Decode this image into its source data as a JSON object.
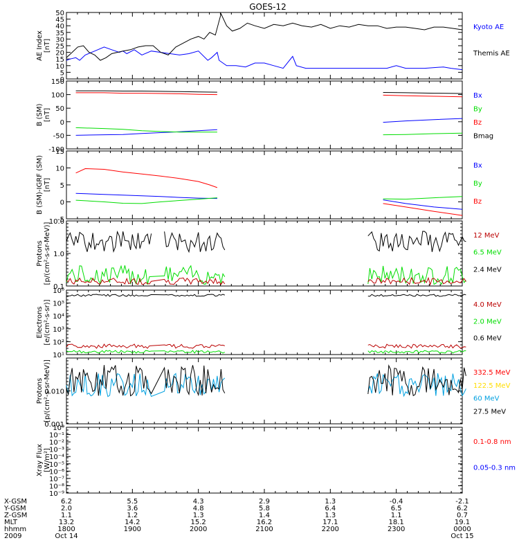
{
  "title": "GOES-12",
  "chart_data": [
    {
      "type": "line",
      "panel": "ae",
      "ylabel": [
        "AE Index",
        "[nT]"
      ],
      "ylim": [
        0,
        50
      ],
      "yticks": [
        "0",
        "5",
        "10",
        "15",
        "20",
        "25",
        "30",
        "35",
        "40",
        "45",
        "50"
      ],
      "series": [
        {
          "name": "Kyoto AE",
          "color": "#0000ff",
          "segments": [
            [
              [
                0,
                14
              ],
              [
                2,
                15
              ],
              [
                5,
                16
              ],
              [
                7,
                14
              ],
              [
                10,
                18
              ],
              [
                15,
                21
              ],
              [
                20,
                24
              ],
              [
                24,
                22
              ],
              [
                28,
                20
              ],
              [
                30,
                21
              ],
              [
                32,
                19
              ],
              [
                36,
                22
              ],
              [
                40,
                18
              ],
              [
                45,
                21
              ],
              [
                50,
                20
              ],
              [
                55,
                19
              ],
              [
                60,
                18
              ],
              [
                65,
                19
              ],
              [
                70,
                21
              ],
              [
                75,
                14
              ],
              [
                77,
                16
              ],
              [
                80,
                20
              ],
              [
                81,
                14
              ],
              [
                85,
                10
              ],
              [
                90,
                10
              ],
              [
                95,
                9
              ],
              [
                100,
                12
              ],
              [
                105,
                12
              ],
              [
                110,
                10
              ],
              [
                115,
                8
              ],
              [
                120,
                17
              ],
              [
                122,
                10
              ],
              [
                127,
                8
              ],
              [
                132,
                8
              ],
              [
                140,
                8
              ],
              [
                150,
                8
              ],
              [
                160,
                8
              ],
              [
                170,
                8
              ],
              [
                175,
                10
              ],
              [
                180,
                8
              ],
              [
                190,
                8
              ],
              [
                200,
                9
              ],
              [
                204,
                8
              ],
              [
                210,
                7
              ]
            ]
          ]
        },
        {
          "name": "Themis AE",
          "color": "#000000",
          "segments": [
            [
              [
                0,
                16
              ],
              [
                3,
                20
              ],
              [
                6,
                24
              ],
              [
                9,
                25
              ],
              [
                12,
                20
              ],
              [
                15,
                18
              ],
              [
                18,
                14
              ],
              [
                21,
                16
              ],
              [
                24,
                19
              ],
              [
                27,
                20
              ],
              [
                30,
                21
              ],
              [
                34,
                22
              ],
              [
                38,
                24
              ],
              [
                42,
                25
              ],
              [
                46,
                25
              ],
              [
                50,
                20
              ],
              [
                54,
                18
              ],
              [
                58,
                24
              ],
              [
                62,
                27
              ],
              [
                66,
                30
              ],
              [
                70,
                32
              ],
              [
                73,
                30
              ],
              [
                76,
                35
              ],
              [
                79,
                33
              ],
              [
                82,
                49
              ],
              [
                85,
                40
              ],
              [
                88,
                36
              ],
              [
                92,
                38
              ],
              [
                96,
                42
              ],
              [
                100,
                40
              ],
              [
                105,
                38
              ],
              [
                110,
                41
              ],
              [
                115,
                40
              ],
              [
                120,
                42
              ],
              [
                125,
                40
              ],
              [
                130,
                39
              ],
              [
                135,
                41
              ],
              [
                140,
                38
              ],
              [
                145,
                40
              ],
              [
                150,
                39
              ],
              [
                155,
                41
              ],
              [
                160,
                40
              ],
              [
                165,
                40
              ],
              [
                170,
                38
              ],
              [
                175,
                39
              ],
              [
                180,
                39
              ],
              [
                185,
                38
              ],
              [
                190,
                37
              ],
              [
                195,
                39
              ],
              [
                200,
                39
              ],
              [
                205,
                38
              ],
              [
                210,
                37
              ]
            ]
          ]
        }
      ]
    },
    {
      "type": "line",
      "panel": "bfield",
      "ylabel": [
        "B (SM)",
        "[nT]"
      ],
      "ylim": [
        -100,
        150
      ],
      "yticks": [
        "-100",
        "-50",
        "0",
        "50",
        "100",
        "150"
      ],
      "series": [
        {
          "name": "Bx",
          "color": "#0000ff",
          "segments": [
            [
              [
                5,
                -50
              ],
              [
                20,
                -48
              ],
              [
                30,
                -47
              ],
              [
                40,
                -43
              ],
              [
                50,
                -40
              ],
              [
                60,
                -37
              ],
              [
                70,
                -33
              ],
              [
                80,
                -29
              ]
            ],
            [
              [
                168,
                -2
              ],
              [
                180,
                3
              ],
              [
                195,
                8
              ],
              [
                210,
                12
              ]
            ]
          ]
        },
        {
          "name": "By",
          "color": "#00dd00",
          "segments": [
            [
              [
                5,
                -22
              ],
              [
                20,
                -25
              ],
              [
                30,
                -28
              ],
              [
                40,
                -33
              ],
              [
                50,
                -36
              ],
              [
                60,
                -38
              ],
              [
                70,
                -38
              ],
              [
                80,
                -38
              ]
            ],
            [
              [
                168,
                -48
              ],
              [
                180,
                -47
              ],
              [
                195,
                -44
              ],
              [
                210,
                -42
              ]
            ]
          ]
        },
        {
          "name": "Bz",
          "color": "#ff0000",
          "segments": [
            [
              [
                5,
                107
              ],
              [
                20,
                107
              ],
              [
                30,
                105
              ],
              [
                40,
                105
              ],
              [
                50,
                104
              ],
              [
                60,
                103
              ],
              [
                70,
                101
              ],
              [
                80,
                100
              ]
            ],
            [
              [
                168,
                98
              ],
              [
                180,
                96
              ],
              [
                195,
                94
              ],
              [
                210,
                92
              ]
            ]
          ]
        },
        {
          "name": "Bmag",
          "color": "#000000",
          "segments": [
            [
              [
                5,
                114
              ],
              [
                20,
                114
              ],
              [
                30,
                113
              ],
              [
                40,
                113
              ],
              [
                50,
                112
              ],
              [
                60,
                111
              ],
              [
                70,
                110
              ],
              [
                80,
                109
              ]
            ],
            [
              [
                168,
                108
              ],
              [
                180,
                107
              ],
              [
                195,
                105
              ],
              [
                210,
                104
              ]
            ]
          ]
        }
      ]
    },
    {
      "type": "line",
      "panel": "bdiff",
      "ylabel": [
        "B (SM)-IGRF (SM)",
        "[nT]"
      ],
      "ylim": [
        -5,
        15
      ],
      "yticks": [
        "-5",
        "0",
        "5",
        "10",
        "15"
      ],
      "series": [
        {
          "name": "Bx",
          "color": "#0000ff",
          "segments": [
            [
              [
                5,
                2.5
              ],
              [
                20,
                2.2
              ],
              [
                30,
                2.0
              ],
              [
                40,
                1.8
              ],
              [
                50,
                1.6
              ],
              [
                60,
                1.3
              ],
              [
                70,
                1.1
              ],
              [
                80,
                1.0
              ]
            ],
            [
              [
                168,
                0.6
              ],
              [
                180,
                -0.5
              ],
              [
                195,
                -1.5
              ],
              [
                210,
                -2.2
              ]
            ]
          ]
        },
        {
          "name": "By",
          "color": "#00dd00",
          "segments": [
            [
              [
                5,
                0.5
              ],
              [
                20,
                0.0
              ],
              [
                30,
                -0.4
              ],
              [
                40,
                -0.5
              ],
              [
                50,
                0.0
              ],
              [
                60,
                0.4
              ],
              [
                70,
                0.8
              ],
              [
                80,
                1.2
              ]
            ],
            [
              [
                168,
                0.9
              ],
              [
                180,
                0.8
              ],
              [
                195,
                1.2
              ],
              [
                210,
                1.6
              ]
            ]
          ]
        },
        {
          "name": "Bz",
          "color": "#ff0000",
          "segments": [
            [
              [
                5,
                8.5
              ],
              [
                10,
                9.8
              ],
              [
                20,
                9.6
              ],
              [
                30,
                8.8
              ],
              [
                40,
                8.2
              ],
              [
                50,
                7.6
              ],
              [
                60,
                6.9
              ],
              [
                70,
                6.0
              ],
              [
                76,
                5.0
              ],
              [
                80,
                4.2
              ]
            ],
            [
              [
                168,
                -0.5
              ],
              [
                180,
                -1.5
              ],
              [
                195,
                -2.8
              ],
              [
                210,
                -4.0
              ]
            ]
          ]
        }
      ]
    },
    {
      "type": "line",
      "panel": "protons1",
      "ylabel": [
        "Protons",
        "[p/(cm²-s-sr-MeV)]"
      ],
      "scale": "log",
      "ylim": [
        0.1,
        10
      ],
      "yticks": [
        "0.1",
        "1.0",
        "10.0"
      ],
      "series": [
        {
          "name": "12 MeV",
          "color": "#bb0000",
          "segments": []
        },
        {
          "name": "6.5 MeV",
          "color": "#00dd00",
          "segments": []
        },
        {
          "name": "2.4 MeV",
          "color": "#000000",
          "segments": []
        }
      ]
    },
    {
      "type": "line",
      "panel": "electrons",
      "ylabel": [
        "Electrons",
        "[e/(cm²-s-sr)]"
      ],
      "scale": "log",
      "ylim": [
        10,
        1000000
      ],
      "yticks": [
        "10¹",
        "10²",
        "10³",
        "10⁴",
        "10⁵",
        "10⁶"
      ],
      "series": [
        {
          "name": "4.0 MeV",
          "color": "#bb0000",
          "segments": []
        },
        {
          "name": "2.0 MeV",
          "color": "#00dd00",
          "segments": []
        },
        {
          "name": "0.6 MeV",
          "color": "#000000",
          "segments": []
        }
      ]
    },
    {
      "type": "line",
      "panel": "protons2",
      "ylabel": [
        "Protons",
        "[p/(cm²-s-sr-MeV)]"
      ],
      "scale": "log",
      "ylim": [
        0.001,
        0.1
      ],
      "yticks": [
        "0.001",
        "0.010"
      ],
      "series": [
        {
          "name": "332.5 MeV",
          "color": "#ff0000",
          "segments": []
        },
        {
          "name": "122.5 MeV",
          "color": "#ffdd00",
          "segments": []
        },
        {
          "name": "60 MeV",
          "color": "#00a0e0",
          "segments": []
        },
        {
          "name": "27.5 MeV",
          "color": "#000000",
          "segments": []
        }
      ]
    },
    {
      "type": "line",
      "panel": "xray",
      "ylabel": [
        "Xray Flux",
        "[W/m²]"
      ],
      "scale": "log",
      "ylim": [
        1e-09,
        1
      ],
      "yticks": [
        "10⁻⁹",
        "10⁻⁸",
        "10⁻⁷",
        "10⁻⁶",
        "10⁻⁵",
        "10⁻⁴",
        "10⁻³",
        "10⁻²",
        "10⁻¹",
        "10⁰"
      ],
      "series": [
        {
          "name": "0.1-0.8 nm",
          "color": "#ff0000",
          "segments": []
        },
        {
          "name": "0.05-0.3 nm",
          "color": "#0000ff",
          "segments": []
        }
      ]
    }
  ],
  "xaxis": {
    "range_minutes": [
      0,
      360
    ],
    "tick_minutes": [
      0,
      60,
      120,
      180,
      240,
      300,
      360
    ],
    "row_labels": [
      "X-GSM",
      "Y-GSM",
      "Z-GSM",
      "MLT",
      "hhmm",
      "2009"
    ],
    "columns": [
      [
        "6.2",
        "2.0",
        "1.1",
        "13.2",
        "1800",
        "Oct 14"
      ],
      [
        "5.5",
        "3.6",
        "1.2",
        "14.2",
        "1900",
        ""
      ],
      [
        "4.3",
        "4.8",
        "1.3",
        "15.2",
        "2000",
        ""
      ],
      [
        "2.9",
        "5.8",
        "1.4",
        "16.2",
        "2100",
        ""
      ],
      [
        "1.3",
        "6.4",
        "1.3",
        "17.1",
        "2200",
        ""
      ],
      [
        "-0.4",
        "6.5",
        "1.1",
        "18.1",
        "2300",
        ""
      ],
      [
        "-2.1",
        "6.2",
        "0.7",
        "19.1",
        "0000",
        "Oct 15"
      ]
    ]
  }
}
